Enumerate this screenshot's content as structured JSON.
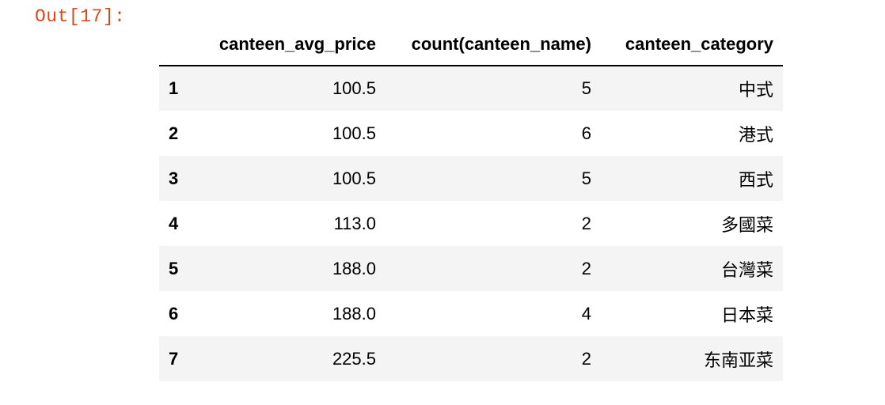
{
  "cell_output": {
    "prompt": "Out[17]:"
  },
  "table": {
    "columns": [
      "canteen_avg_price",
      "count(canteen_name)",
      "canteen_category"
    ],
    "rows": [
      {
        "index": "1",
        "canteen_avg_price": "100.5",
        "count": "5",
        "canteen_category": "中式"
      },
      {
        "index": "2",
        "canteen_avg_price": "100.5",
        "count": "6",
        "canteen_category": "港式"
      },
      {
        "index": "3",
        "canteen_avg_price": "100.5",
        "count": "5",
        "canteen_category": "西式"
      },
      {
        "index": "4",
        "canteen_avg_price": "113.0",
        "count": "2",
        "canteen_category": "多國菜"
      },
      {
        "index": "5",
        "canteen_avg_price": "188.0",
        "count": "2",
        "canteen_category": "台灣菜"
      },
      {
        "index": "6",
        "canteen_avg_price": "188.0",
        "count": "4",
        "canteen_category": "日本菜"
      },
      {
        "index": "7",
        "canteen_avg_price": "225.5",
        "count": "2",
        "canteen_category": "东南亚菜"
      }
    ]
  },
  "colors": {
    "prompt": "#d84a1b",
    "stripe": "#f4f4f4"
  }
}
